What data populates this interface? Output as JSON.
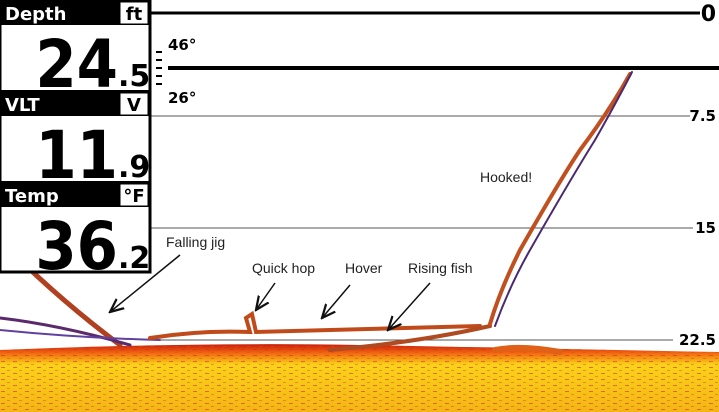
{
  "readouts": [
    {
      "label": "Depth",
      "unit": "ft",
      "integer": "24",
      "decimal": ".5"
    },
    {
      "label": "VLT",
      "unit": "V",
      "integer": "11",
      "decimal": ".9"
    },
    {
      "label": "Temp",
      "unit": "°F",
      "integer": "36",
      "decimal": ".2"
    }
  ],
  "depth_scale": [
    "0",
    "7.5",
    "15",
    "22.5"
  ],
  "temperature_scale": [
    "46°",
    "26°"
  ],
  "annotations": [
    "Falling jig",
    "Quick hop",
    "Hover",
    "Rising fish",
    "Hooked!"
  ]
}
